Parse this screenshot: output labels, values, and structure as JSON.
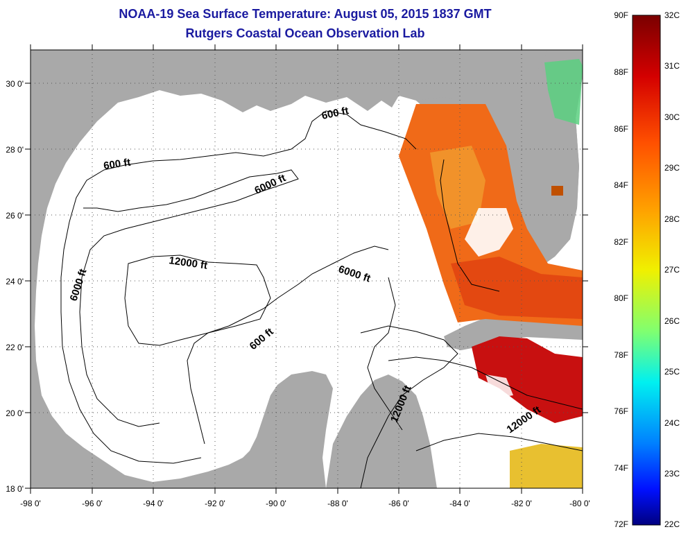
{
  "header": {
    "title": "NOAA-19 Sea Surface Temperature:  August 05, 2015 1837 GMT",
    "subtitle": "Rutgers Coastal Ocean Observation Lab"
  },
  "map": {
    "lon_ticks": [
      "-98 0'",
      "-96 0'",
      "-94 0'",
      "-92 0'",
      "-90 0'",
      "-88 0'",
      "-86 0'",
      "-84 0'",
      "-82 0'",
      "-80 0'"
    ],
    "lat_ticks": [
      "30 0'",
      "28 0'",
      "26 0'",
      "24 0'",
      "22 0'",
      "20 0'",
      "18 0'"
    ],
    "contour_labels": [
      "600 ft",
      "600 ft",
      "6000 ft",
      "6000 ft",
      "12000 ft",
      "6000 ft",
      "600 ft",
      "12000 ft",
      "12000 ft"
    ],
    "colors": {
      "land": "#a9a9a9",
      "water": "#ffffff",
      "title": "#1a1aa0"
    }
  },
  "colorbar": {
    "fahrenheit": [
      "90F",
      "88F",
      "86F",
      "84F",
      "82F",
      "80F",
      "78F",
      "76F",
      "74F",
      "72F"
    ],
    "celsius": [
      "32C",
      "31C",
      "30C",
      "29C",
      "28C",
      "27C",
      "26C",
      "25C",
      "24C",
      "23C",
      "22C"
    ]
  }
}
